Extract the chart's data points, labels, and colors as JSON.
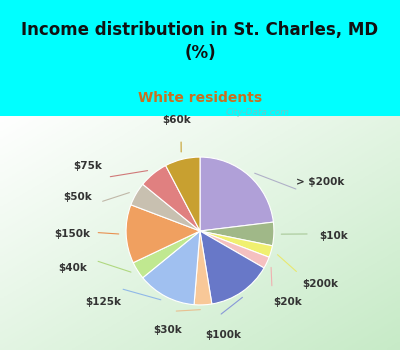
{
  "title": "Income distribution in St. Charles, MD\n(%)",
  "subtitle": "White residents",
  "title_color": "#111111",
  "subtitle_color": "#c87020",
  "background_top": "#00ffff",
  "background_chart_gradient": [
    "#ffffff",
    "#d0ecd0"
  ],
  "slices": [
    {
      "label": "> $200k",
      "value": 18,
      "color": "#b0a0d8"
    },
    {
      "label": "$10k",
      "value": 4,
      "color": "#a0b888"
    },
    {
      "label": "$200k",
      "value": 2,
      "color": "#f0f070"
    },
    {
      "label": "$20k",
      "value": 2,
      "color": "#f5c0c0"
    },
    {
      "label": "$100k",
      "value": 11,
      "color": "#6878c8"
    },
    {
      "label": "$30k",
      "value": 3,
      "color": "#f8c898"
    },
    {
      "label": "$125k",
      "value": 10,
      "color": "#a0c0f0"
    },
    {
      "label": "$40k",
      "value": 3,
      "color": "#c0e890"
    },
    {
      "label": "$150k",
      "value": 10,
      "color": "#f0a060"
    },
    {
      "label": "$50k",
      "value": 4,
      "color": "#c8c0b0"
    },
    {
      "label": "$75k",
      "value": 5,
      "color": "#e08080"
    },
    {
      "label": "$60k",
      "value": 6,
      "color": "#c8a030"
    }
  ],
  "label_fontsize": 7.5,
  "label_color": "#333333",
  "watermark": "City-Data.com",
  "title_fontsize": 12,
  "subtitle_fontsize": 10
}
